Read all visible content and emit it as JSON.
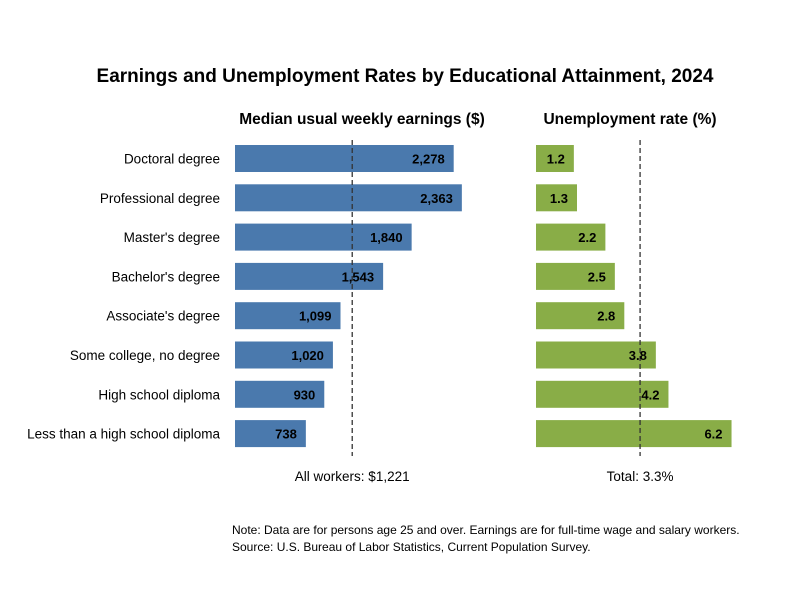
{
  "chart_data": {
    "type": "bar",
    "title": "Earnings and Unemployment Rates by Educational Attainment, 2024",
    "categories": [
      "Doctoral degree",
      "Professional degree",
      "Master's degree",
      "Bachelor's degree",
      "Associate's degree",
      "Some college, no degree",
      "High school diploma",
      "Less than a high school diploma"
    ],
    "series": [
      {
        "name": "Median usual weekly earnings ($)",
        "values": [
          2278,
          2363,
          1840,
          1543,
          1099,
          1020,
          930,
          738
        ],
        "labels": [
          "2,278",
          "2,363",
          "1,840",
          "1,543",
          "1,099",
          "1,020",
          "930",
          "738"
        ],
        "color": "#4a79ad",
        "reference_value": 1221,
        "reference_label": "All workers: $1,221",
        "xlim": [
          0,
          2500
        ]
      },
      {
        "name": "Unemployment rate (%)",
        "values": [
          1.2,
          1.3,
          2.2,
          2.5,
          2.8,
          3.8,
          4.2,
          6.2
        ],
        "labels": [
          "1.2",
          "1.3",
          "2.2",
          "2.5",
          "2.8",
          "3.8",
          "4.2",
          "6.2"
        ],
        "color": "#89ad47",
        "reference_value": 3.3,
        "reference_label": "Total: 3.3%",
        "xlim": [
          0,
          6.5
        ]
      }
    ],
    "orientation": "horizontal",
    "grid": false,
    "legend": "none"
  },
  "notes": {
    "note": "Note: Data are for persons age 25 and over. Earnings are for full-time wage and salary workers.",
    "source": "Source: U.S. Bureau of Labor Statistics, Current Population Survey."
  }
}
